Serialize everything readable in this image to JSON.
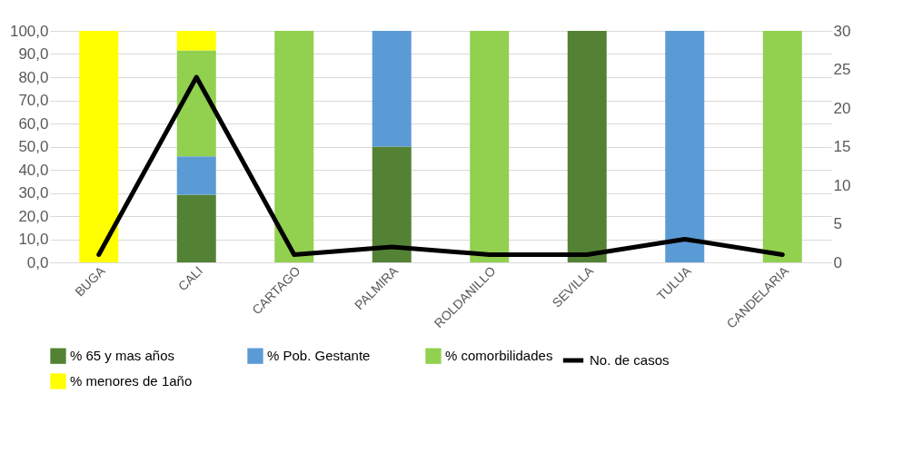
{
  "chart_data": {
    "type": "bar",
    "stacked": true,
    "categories": [
      "BUGA",
      "CALI",
      "CARTAGO",
      "PALMIRA",
      "ROLDANILLO",
      "SEVILLA",
      "TULUA",
      "CANDELARIA"
    ],
    "series": [
      {
        "name": "% 65 y mas años",
        "color": "#548235",
        "values": [
          null,
          29.2,
          null,
          50.0,
          null,
          100.0,
          null,
          null
        ]
      },
      {
        "name": "% Pob. Gestante",
        "color": "#5b9bd5",
        "values": [
          null,
          16.6,
          null,
          50.0,
          null,
          null,
          100.0,
          null
        ]
      },
      {
        "name": "% comorbilidades",
        "color": "#92d050",
        "values": [
          null,
          45.8,
          100.0,
          null,
          100.0,
          null,
          null,
          100.0
        ]
      },
      {
        "name": "% menores de 1año",
        "color": "#ffff00",
        "values": [
          100.0,
          8.4,
          null,
          null,
          null,
          null,
          null,
          null
        ]
      },
      {
        "name": "No. de casos",
        "type": "line",
        "axis": "y2",
        "color": "#000000",
        "values": [
          1,
          24,
          1,
          2,
          1,
          1,
          3,
          1
        ]
      }
    ],
    "ylim": [
      0,
      100
    ],
    "yticks": [
      {
        "value": 0,
        "label": "0,0"
      },
      {
        "value": 10,
        "label": "10,0"
      },
      {
        "value": 20,
        "label": "20,0"
      },
      {
        "value": 30,
        "label": "30,0"
      },
      {
        "value": 40,
        "label": "40,0"
      },
      {
        "value": 50,
        "label": "50,0"
      },
      {
        "value": 60,
        "label": "60,0"
      },
      {
        "value": 70,
        "label": "70,0"
      },
      {
        "value": 80,
        "label": "80,0"
      },
      {
        "value": 90,
        "label": "90,0"
      },
      {
        "value": 100,
        "label": "100,0"
      }
    ],
    "y2lim": [
      0,
      30
    ],
    "y2ticks": [
      0,
      5,
      10,
      15,
      20,
      25,
      30
    ],
    "grid": "y",
    "legend": "bottom"
  }
}
